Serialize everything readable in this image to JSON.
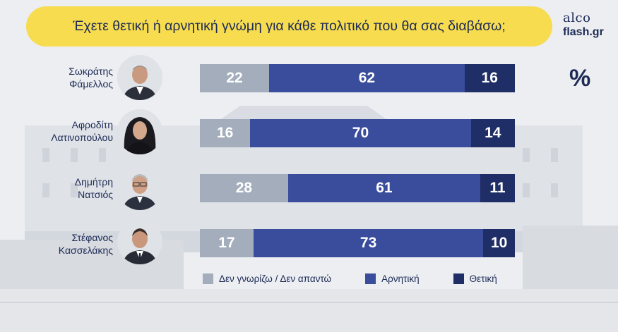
{
  "title": "Έχετε θετική ή αρνητική γνώμη για κάθε πολιτικό που θα σας διαβάσω;",
  "brand": {
    "line1": "alco",
    "line2": "flash.gr"
  },
  "unit_label": "%",
  "colors": {
    "title_bg": "#f7dc4f",
    "text": "#1c2a55",
    "dont_know": "#a3adbb",
    "negative": "#3a4c9c",
    "positive": "#1f2e66"
  },
  "legend": [
    {
      "label": "Δεν γνωρίζω / Δεν απαντώ",
      "color": "#a3adbb"
    },
    {
      "label": "Αρνητική",
      "color": "#3a4c9c"
    },
    {
      "label": "Θετική",
      "color": "#1f2e66"
    }
  ],
  "chart_data": {
    "type": "bar",
    "orientation": "horizontal",
    "stacked": true,
    "title": "Έχετε θετική ή αρνητική γνώμη για κάθε πολιτικό που θα σας διαβάσω;",
    "unit": "%",
    "categories": [
      [
        "Σωκράτης",
        "Φάμελλος"
      ],
      [
        "Αφροδίτη",
        "Λατινοπούλου"
      ],
      [
        "Δημήτρη",
        "Νατσιός"
      ],
      [
        "Στέφανος",
        "Κασσελάκης"
      ]
    ],
    "series": [
      {
        "name": "Δεν γνωρίζω / Δεν απαντώ",
        "values": [
          22,
          16,
          28,
          17
        ],
        "color": "#a3adbb"
      },
      {
        "name": "Αρνητική",
        "values": [
          62,
          70,
          61,
          73
        ],
        "color": "#3a4c9c"
      },
      {
        "name": "Θετική",
        "values": [
          16,
          14,
          11,
          10
        ],
        "color": "#1f2e66"
      }
    ],
    "xlim": [
      0,
      100
    ],
    "legend_position": "bottom",
    "grid": false
  }
}
